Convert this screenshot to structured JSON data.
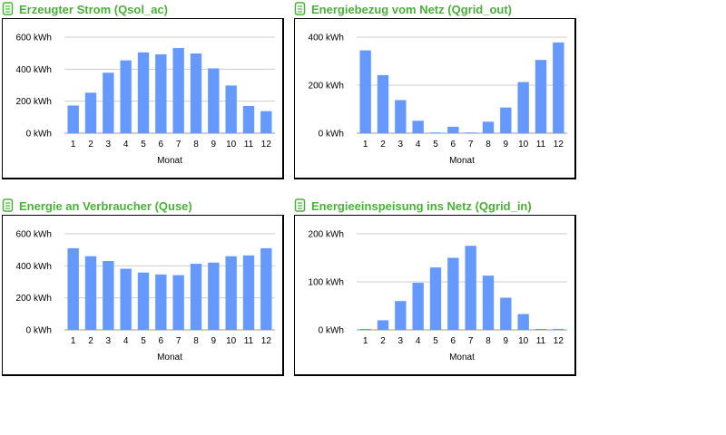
{
  "icons": {
    "panel_icon": "document-list-icon"
  },
  "colors": {
    "bar": "#6699ff",
    "title": "#4caf3a",
    "grid": "#cccccc"
  },
  "chart_data": [
    {
      "type": "bar",
      "title": "Erzeugter Strom (Qsol_ac)",
      "xlabel": "Monat",
      "ylabel": "",
      "unit": "kWh",
      "categories": [
        "1",
        "2",
        "3",
        "4",
        "5",
        "6",
        "7",
        "8",
        "9",
        "10",
        "11",
        "12"
      ],
      "values": [
        173,
        253,
        378,
        455,
        505,
        493,
        532,
        498,
        405,
        298,
        170,
        138
      ],
      "ylim": [
        0,
        600
      ],
      "yticks": [
        0,
        200,
        400,
        600
      ],
      "ytick_labels": [
        "0 kWh",
        "200 kWh",
        "400 kWh",
        "600 kWh"
      ],
      "grid": true
    },
    {
      "type": "bar",
      "title": "Energiebezug vom Netz (Qgrid_out)",
      "xlabel": "Monat",
      "ylabel": "",
      "unit": "kWh",
      "categories": [
        "1",
        "2",
        "3",
        "4",
        "5",
        "6",
        "7",
        "8",
        "9",
        "10",
        "11",
        "12"
      ],
      "values": [
        345,
        242,
        138,
        52,
        3,
        27,
        3,
        48,
        107,
        213,
        305,
        378
      ],
      "ylim": [
        0,
        400
      ],
      "yticks": [
        0,
        200,
        400
      ],
      "ytick_labels": [
        "0 kWh",
        "200 kWh",
        "400 kWh"
      ],
      "grid": true
    },
    {
      "type": "bar",
      "title": "Energie an Verbraucher (Quse)",
      "xlabel": "Monat",
      "ylabel": "",
      "unit": "kWh",
      "categories": [
        "1",
        "2",
        "3",
        "4",
        "5",
        "6",
        "7",
        "8",
        "9",
        "10",
        "11",
        "12"
      ],
      "values": [
        510,
        460,
        430,
        382,
        358,
        346,
        342,
        413,
        420,
        460,
        465,
        510
      ],
      "ylim": [
        0,
        600
      ],
      "yticks": [
        0,
        200,
        400,
        600
      ],
      "ytick_labels": [
        "0 kWh",
        "200 kWh",
        "400 kWh",
        "600 kWh"
      ],
      "grid": true
    },
    {
      "type": "bar",
      "title": "Energieeinspeisung ins Netz (Qgrid_in)",
      "xlabel": "Monat",
      "ylabel": "",
      "unit": "kWh",
      "categories": [
        "1",
        "2",
        "3",
        "4",
        "5",
        "6",
        "7",
        "8",
        "9",
        "10",
        "11",
        "12"
      ],
      "values": [
        2,
        20,
        60,
        98,
        130,
        150,
        175,
        113,
        67,
        33,
        2,
        2
      ],
      "ylim": [
        0,
        200
      ],
      "yticks": [
        0,
        100,
        200
      ],
      "ytick_labels": [
        "0 kWh",
        "100 kWh",
        "200 kWh"
      ],
      "grid": true
    }
  ]
}
